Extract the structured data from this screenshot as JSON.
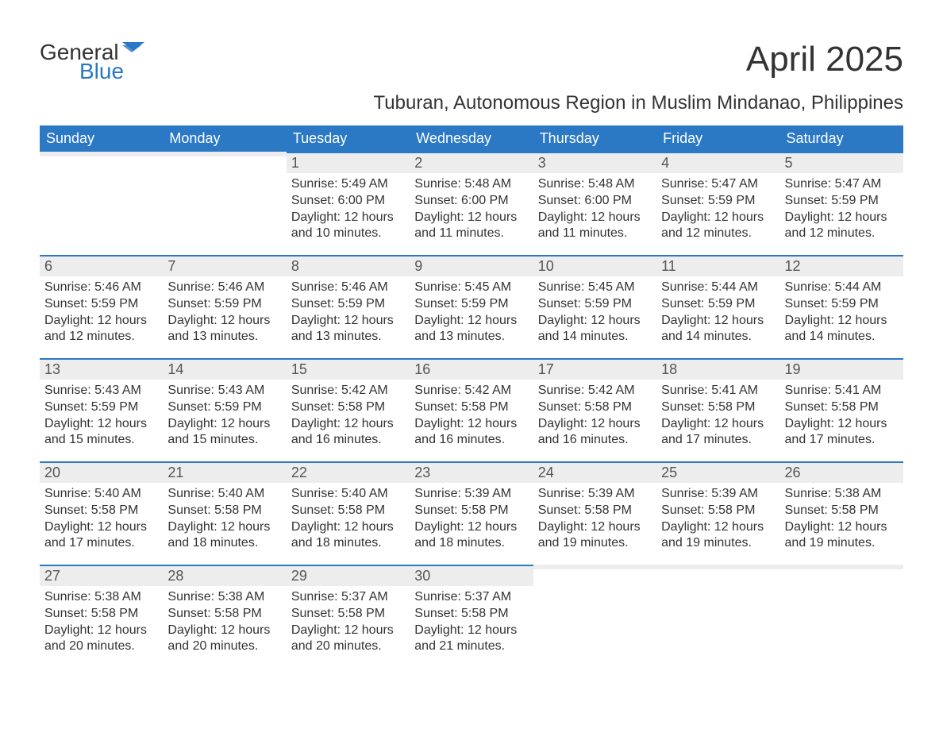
{
  "logo": {
    "general": "General",
    "blue": "Blue",
    "icon_color": "#2b78c5"
  },
  "title": "April 2025",
  "subtitle": "Tuburan, Autonomous Region in Muslim Mindanao, Philippines",
  "colors": {
    "header_bg": "#2b78c5",
    "header_text": "#ffffff",
    "daynum_bg": "#ededed",
    "daynum_border": "#2b78c5",
    "body_text": "#333333"
  },
  "weekdays": [
    "Sunday",
    "Monday",
    "Tuesday",
    "Wednesday",
    "Thursday",
    "Friday",
    "Saturday"
  ],
  "weeks": [
    [
      {
        "day": "",
        "lines": []
      },
      {
        "day": "",
        "lines": []
      },
      {
        "day": "1",
        "lines": [
          "Sunrise: 5:49 AM",
          "Sunset: 6:00 PM",
          "Daylight: 12 hours and 10 minutes."
        ]
      },
      {
        "day": "2",
        "lines": [
          "Sunrise: 5:48 AM",
          "Sunset: 6:00 PM",
          "Daylight: 12 hours and 11 minutes."
        ]
      },
      {
        "day": "3",
        "lines": [
          "Sunrise: 5:48 AM",
          "Sunset: 6:00 PM",
          "Daylight: 12 hours and 11 minutes."
        ]
      },
      {
        "day": "4",
        "lines": [
          "Sunrise: 5:47 AM",
          "Sunset: 5:59 PM",
          "Daylight: 12 hours and 12 minutes."
        ]
      },
      {
        "day": "5",
        "lines": [
          "Sunrise: 5:47 AM",
          "Sunset: 5:59 PM",
          "Daylight: 12 hours and 12 minutes."
        ]
      }
    ],
    [
      {
        "day": "6",
        "lines": [
          "Sunrise: 5:46 AM",
          "Sunset: 5:59 PM",
          "Daylight: 12 hours and 12 minutes."
        ]
      },
      {
        "day": "7",
        "lines": [
          "Sunrise: 5:46 AM",
          "Sunset: 5:59 PM",
          "Daylight: 12 hours and 13 minutes."
        ]
      },
      {
        "day": "8",
        "lines": [
          "Sunrise: 5:46 AM",
          "Sunset: 5:59 PM",
          "Daylight: 12 hours and 13 minutes."
        ]
      },
      {
        "day": "9",
        "lines": [
          "Sunrise: 5:45 AM",
          "Sunset: 5:59 PM",
          "Daylight: 12 hours and 13 minutes."
        ]
      },
      {
        "day": "10",
        "lines": [
          "Sunrise: 5:45 AM",
          "Sunset: 5:59 PM",
          "Daylight: 12 hours and 14 minutes."
        ]
      },
      {
        "day": "11",
        "lines": [
          "Sunrise: 5:44 AM",
          "Sunset: 5:59 PM",
          "Daylight: 12 hours and 14 minutes."
        ]
      },
      {
        "day": "12",
        "lines": [
          "Sunrise: 5:44 AM",
          "Sunset: 5:59 PM",
          "Daylight: 12 hours and 14 minutes."
        ]
      }
    ],
    [
      {
        "day": "13",
        "lines": [
          "Sunrise: 5:43 AM",
          "Sunset: 5:59 PM",
          "Daylight: 12 hours and 15 minutes."
        ]
      },
      {
        "day": "14",
        "lines": [
          "Sunrise: 5:43 AM",
          "Sunset: 5:59 PM",
          "Daylight: 12 hours and 15 minutes."
        ]
      },
      {
        "day": "15",
        "lines": [
          "Sunrise: 5:42 AM",
          "Sunset: 5:58 PM",
          "Daylight: 12 hours and 16 minutes."
        ]
      },
      {
        "day": "16",
        "lines": [
          "Sunrise: 5:42 AM",
          "Sunset: 5:58 PM",
          "Daylight: 12 hours and 16 minutes."
        ]
      },
      {
        "day": "17",
        "lines": [
          "Sunrise: 5:42 AM",
          "Sunset: 5:58 PM",
          "Daylight: 12 hours and 16 minutes."
        ]
      },
      {
        "day": "18",
        "lines": [
          "Sunrise: 5:41 AM",
          "Sunset: 5:58 PM",
          "Daylight: 12 hours and 17 minutes."
        ]
      },
      {
        "day": "19",
        "lines": [
          "Sunrise: 5:41 AM",
          "Sunset: 5:58 PM",
          "Daylight: 12 hours and 17 minutes."
        ]
      }
    ],
    [
      {
        "day": "20",
        "lines": [
          "Sunrise: 5:40 AM",
          "Sunset: 5:58 PM",
          "Daylight: 12 hours and 17 minutes."
        ]
      },
      {
        "day": "21",
        "lines": [
          "Sunrise: 5:40 AM",
          "Sunset: 5:58 PM",
          "Daylight: 12 hours and 18 minutes."
        ]
      },
      {
        "day": "22",
        "lines": [
          "Sunrise: 5:40 AM",
          "Sunset: 5:58 PM",
          "Daylight: 12 hours and 18 minutes."
        ]
      },
      {
        "day": "23",
        "lines": [
          "Sunrise: 5:39 AM",
          "Sunset: 5:58 PM",
          "Daylight: 12 hours and 18 minutes."
        ]
      },
      {
        "day": "24",
        "lines": [
          "Sunrise: 5:39 AM",
          "Sunset: 5:58 PM",
          "Daylight: 12 hours and 19 minutes."
        ]
      },
      {
        "day": "25",
        "lines": [
          "Sunrise: 5:39 AM",
          "Sunset: 5:58 PM",
          "Daylight: 12 hours and 19 minutes."
        ]
      },
      {
        "day": "26",
        "lines": [
          "Sunrise: 5:38 AM",
          "Sunset: 5:58 PM",
          "Daylight: 12 hours and 19 minutes."
        ]
      }
    ],
    [
      {
        "day": "27",
        "lines": [
          "Sunrise: 5:38 AM",
          "Sunset: 5:58 PM",
          "Daylight: 12 hours and 20 minutes."
        ]
      },
      {
        "day": "28",
        "lines": [
          "Sunrise: 5:38 AM",
          "Sunset: 5:58 PM",
          "Daylight: 12 hours and 20 minutes."
        ]
      },
      {
        "day": "29",
        "lines": [
          "Sunrise: 5:37 AM",
          "Sunset: 5:58 PM",
          "Daylight: 12 hours and 20 minutes."
        ]
      },
      {
        "day": "30",
        "lines": [
          "Sunrise: 5:37 AM",
          "Sunset: 5:58 PM",
          "Daylight: 12 hours and 21 minutes."
        ]
      },
      {
        "day": "",
        "lines": []
      },
      {
        "day": "",
        "lines": []
      },
      {
        "day": "",
        "lines": []
      }
    ]
  ]
}
